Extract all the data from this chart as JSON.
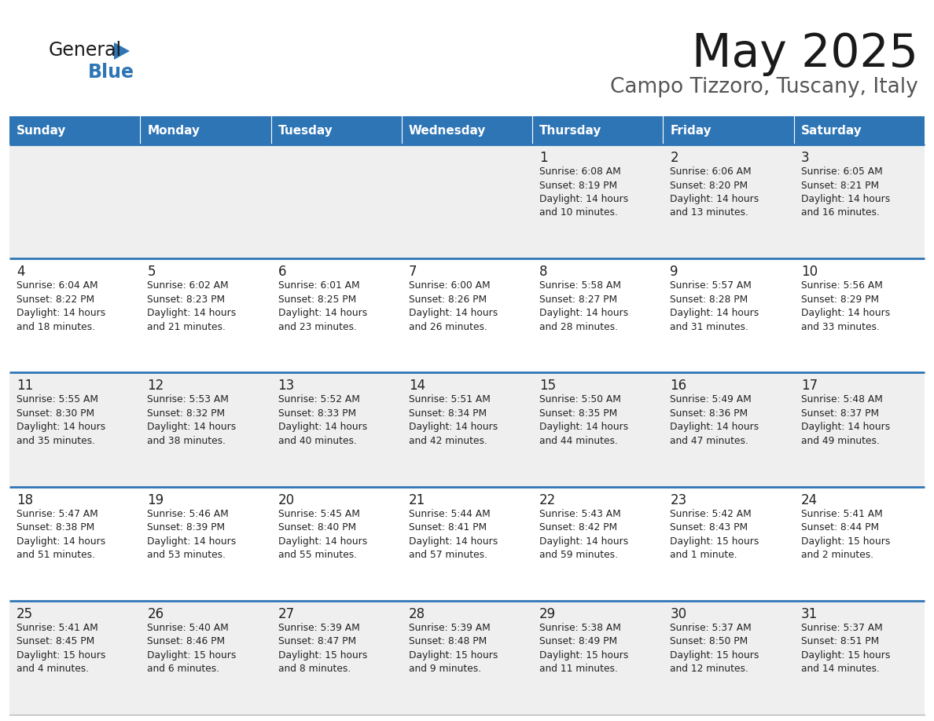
{
  "title": "May 2025",
  "subtitle": "Campo Tizzoro, Tuscany, Italy",
  "days_of_week": [
    "Sunday",
    "Monday",
    "Tuesday",
    "Wednesday",
    "Thursday",
    "Friday",
    "Saturday"
  ],
  "header_bg": "#2E75B6",
  "header_text": "#FFFFFF",
  "cell_bg_odd": "#EFEFEF",
  "cell_bg_even": "#FFFFFF",
  "row_line_color": "#2E75B6",
  "text_color": "#222222",
  "title_color": "#1a1a1a",
  "subtitle_color": "#555555",
  "calendar_data": [
    [
      null,
      null,
      null,
      null,
      {
        "day": 1,
        "sunrise": "6:08 AM",
        "sunset": "8:19 PM",
        "daylight": "14 hours",
        "daylight2": "and 10 minutes."
      },
      {
        "day": 2,
        "sunrise": "6:06 AM",
        "sunset": "8:20 PM",
        "daylight": "14 hours",
        "daylight2": "and 13 minutes."
      },
      {
        "day": 3,
        "sunrise": "6:05 AM",
        "sunset": "8:21 PM",
        "daylight": "14 hours",
        "daylight2": "and 16 minutes."
      }
    ],
    [
      {
        "day": 4,
        "sunrise": "6:04 AM",
        "sunset": "8:22 PM",
        "daylight": "14 hours",
        "daylight2": "and 18 minutes."
      },
      {
        "day": 5,
        "sunrise": "6:02 AM",
        "sunset": "8:23 PM",
        "daylight": "14 hours",
        "daylight2": "and 21 minutes."
      },
      {
        "day": 6,
        "sunrise": "6:01 AM",
        "sunset": "8:25 PM",
        "daylight": "14 hours",
        "daylight2": "and 23 minutes."
      },
      {
        "day": 7,
        "sunrise": "6:00 AM",
        "sunset": "8:26 PM",
        "daylight": "14 hours",
        "daylight2": "and 26 minutes."
      },
      {
        "day": 8,
        "sunrise": "5:58 AM",
        "sunset": "8:27 PM",
        "daylight": "14 hours",
        "daylight2": "and 28 minutes."
      },
      {
        "day": 9,
        "sunrise": "5:57 AM",
        "sunset": "8:28 PM",
        "daylight": "14 hours",
        "daylight2": "and 31 minutes."
      },
      {
        "day": 10,
        "sunrise": "5:56 AM",
        "sunset": "8:29 PM",
        "daylight": "14 hours",
        "daylight2": "and 33 minutes."
      }
    ],
    [
      {
        "day": 11,
        "sunrise": "5:55 AM",
        "sunset": "8:30 PM",
        "daylight": "14 hours",
        "daylight2": "and 35 minutes."
      },
      {
        "day": 12,
        "sunrise": "5:53 AM",
        "sunset": "8:32 PM",
        "daylight": "14 hours",
        "daylight2": "and 38 minutes."
      },
      {
        "day": 13,
        "sunrise": "5:52 AM",
        "sunset": "8:33 PM",
        "daylight": "14 hours",
        "daylight2": "and 40 minutes."
      },
      {
        "day": 14,
        "sunrise": "5:51 AM",
        "sunset": "8:34 PM",
        "daylight": "14 hours",
        "daylight2": "and 42 minutes."
      },
      {
        "day": 15,
        "sunrise": "5:50 AM",
        "sunset": "8:35 PM",
        "daylight": "14 hours",
        "daylight2": "and 44 minutes."
      },
      {
        "day": 16,
        "sunrise": "5:49 AM",
        "sunset": "8:36 PM",
        "daylight": "14 hours",
        "daylight2": "and 47 minutes."
      },
      {
        "day": 17,
        "sunrise": "5:48 AM",
        "sunset": "8:37 PM",
        "daylight": "14 hours",
        "daylight2": "and 49 minutes."
      }
    ],
    [
      {
        "day": 18,
        "sunrise": "5:47 AM",
        "sunset": "8:38 PM",
        "daylight": "14 hours",
        "daylight2": "and 51 minutes."
      },
      {
        "day": 19,
        "sunrise": "5:46 AM",
        "sunset": "8:39 PM",
        "daylight": "14 hours",
        "daylight2": "and 53 minutes."
      },
      {
        "day": 20,
        "sunrise": "5:45 AM",
        "sunset": "8:40 PM",
        "daylight": "14 hours",
        "daylight2": "and 55 minutes."
      },
      {
        "day": 21,
        "sunrise": "5:44 AM",
        "sunset": "8:41 PM",
        "daylight": "14 hours",
        "daylight2": "and 57 minutes."
      },
      {
        "day": 22,
        "sunrise": "5:43 AM",
        "sunset": "8:42 PM",
        "daylight": "14 hours",
        "daylight2": "and 59 minutes."
      },
      {
        "day": 23,
        "sunrise": "5:42 AM",
        "sunset": "8:43 PM",
        "daylight": "15 hours",
        "daylight2": "and 1 minute."
      },
      {
        "day": 24,
        "sunrise": "5:41 AM",
        "sunset": "8:44 PM",
        "daylight": "15 hours",
        "daylight2": "and 2 minutes."
      }
    ],
    [
      {
        "day": 25,
        "sunrise": "5:41 AM",
        "sunset": "8:45 PM",
        "daylight": "15 hours",
        "daylight2": "and 4 minutes."
      },
      {
        "day": 26,
        "sunrise": "5:40 AM",
        "sunset": "8:46 PM",
        "daylight": "15 hours",
        "daylight2": "and 6 minutes."
      },
      {
        "day": 27,
        "sunrise": "5:39 AM",
        "sunset": "8:47 PM",
        "daylight": "15 hours",
        "daylight2": "and 8 minutes."
      },
      {
        "day": 28,
        "sunrise": "5:39 AM",
        "sunset": "8:48 PM",
        "daylight": "15 hours",
        "daylight2": "and 9 minutes."
      },
      {
        "day": 29,
        "sunrise": "5:38 AM",
        "sunset": "8:49 PM",
        "daylight": "15 hours",
        "daylight2": "and 11 minutes."
      },
      {
        "day": 30,
        "sunrise": "5:37 AM",
        "sunset": "8:50 PM",
        "daylight": "15 hours",
        "daylight2": "and 12 minutes."
      },
      {
        "day": 31,
        "sunrise": "5:37 AM",
        "sunset": "8:51 PM",
        "daylight": "15 hours",
        "daylight2": "and 14 minutes."
      }
    ]
  ]
}
